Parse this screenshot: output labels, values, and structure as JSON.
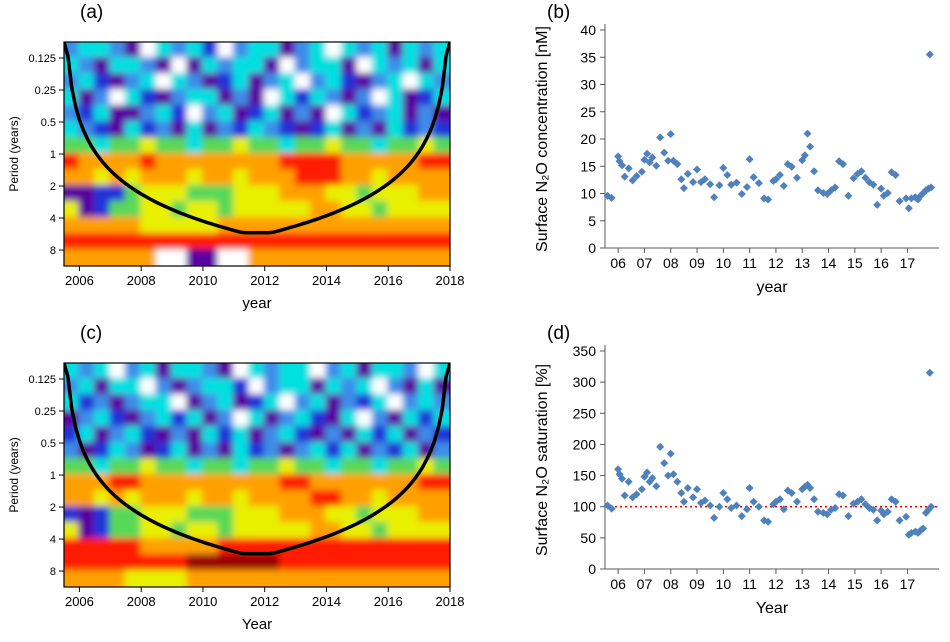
{
  "panels": [
    {
      "id": "a",
      "label": "(a)"
    },
    {
      "id": "b",
      "label": "(b)"
    },
    {
      "id": "c",
      "label": "(c)"
    },
    {
      "id": "d",
      "label": "(d)"
    }
  ],
  "chart_data": [
    {
      "id": "a",
      "type": "heatmap",
      "subtype": "wavelet-power-spectrum-contour",
      "xlabel": "year",
      "ylabel": "Period (years)",
      "x_domain": [
        2005.5,
        2018
      ],
      "x_ticks": [
        2006,
        2008,
        2010,
        2012,
        2014,
        2016,
        2018
      ],
      "x_tick_labels": [
        "2006",
        "2008",
        "2010",
        "2012",
        "2014",
        "2016",
        "2018"
      ],
      "y_scale": "log2",
      "y_domain": [
        0.0884,
        11.3
      ],
      "y_ticks": [
        0.125,
        0.25,
        0.5,
        1,
        2,
        4,
        8
      ],
      "y_tick_labels": [
        "0.125",
        "0.25",
        "0.5",
        "1",
        "2",
        "4",
        "8"
      ],
      "palette": [
        "#5A00A0",
        "#2230D8",
        "#3D8DE8",
        "#00E0E0",
        "#58D858",
        "#E8F000",
        "#FFA000",
        "#FF1E00",
        "#990000",
        "#FFFFFF"
      ],
      "palette_note": "digits in grid_rows index this jet-style palette; 9 = white low-power holes",
      "grid_rows": [
        "2332093231923302393230323",
        "3203320903233092330932303",
        "2310239320130239231023932",
        "3029310233020931320293013",
        "2130023192301302093123020",
        "3210312030213210130203121",
        "4434454434454434454434454",
        "7666676666666677776666677",
        "6656566656656667776656666",
        "0011455544455566655455566",
        "5014455455455555665545555",
        "6666655555666666666666666",
        "7777777777777777777777777",
        "6666669900996666666666666"
      ],
      "cone_of_influence": {
        "present": true,
        "color": "#000000",
        "max_period": 5.5,
        "slope_years_per_period": 0.95
      }
    },
    {
      "id": "b",
      "type": "scatter",
      "xlabel": "year",
      "ylabel": "Surface N₂O concentration [nM]",
      "x_domain": [
        2005.5,
        2018.2
      ],
      "x_tick_years": [
        2006,
        2007,
        2008,
        2009,
        2010,
        2011,
        2012,
        2013,
        2014,
        2015,
        2016,
        2017
      ],
      "x_tick_labels": [
        "06",
        "07",
        "08",
        "09",
        "10",
        "11",
        "12",
        "13",
        "14",
        "15",
        "16",
        "17"
      ],
      "ylim": [
        0,
        40
      ],
      "y_ticks": [
        0,
        5,
        10,
        15,
        20,
        25,
        30,
        35,
        40
      ],
      "y_tick_labels": [
        "0",
        "5",
        "10",
        "15",
        "20",
        "25",
        "30",
        "35",
        "40"
      ],
      "marker": {
        "shape": "diamond",
        "color": "#4F81BD"
      },
      "points": [
        [
          2005.6,
          9.6
        ],
        [
          2005.75,
          9.2
        ],
        [
          2006.0,
          16.8
        ],
        [
          2006.05,
          15.9
        ],
        [
          2006.15,
          15.2
        ],
        [
          2006.25,
          13.1
        ],
        [
          2006.4,
          14.6
        ],
        [
          2006.55,
          12.4
        ],
        [
          2006.7,
          13.2
        ],
        [
          2006.9,
          14.0
        ],
        [
          2007.0,
          16.2
        ],
        [
          2007.1,
          17.3
        ],
        [
          2007.2,
          15.7
        ],
        [
          2007.3,
          16.6
        ],
        [
          2007.45,
          15.1
        ],
        [
          2007.6,
          20.3
        ],
        [
          2007.75,
          17.5
        ],
        [
          2007.9,
          16.0
        ],
        [
          2008.0,
          20.9
        ],
        [
          2008.1,
          16.0
        ],
        [
          2008.25,
          15.4
        ],
        [
          2008.4,
          12.6
        ],
        [
          2008.5,
          11.0
        ],
        [
          2008.65,
          13.6
        ],
        [
          2008.85,
          12.1
        ],
        [
          2009.0,
          14.4
        ],
        [
          2009.15,
          12.1
        ],
        [
          2009.3,
          12.6
        ],
        [
          2009.5,
          11.7
        ],
        [
          2009.65,
          9.3
        ],
        [
          2009.85,
          11.5
        ],
        [
          2010.0,
          14.7
        ],
        [
          2010.15,
          13.4
        ],
        [
          2010.3,
          11.6
        ],
        [
          2010.5,
          12.0
        ],
        [
          2010.7,
          9.9
        ],
        [
          2010.9,
          11.2
        ],
        [
          2011.0,
          16.3
        ],
        [
          2011.15,
          13.0
        ],
        [
          2011.35,
          11.9
        ],
        [
          2011.55,
          9.1
        ],
        [
          2011.7,
          8.9
        ],
        [
          2011.9,
          12.3
        ],
        [
          2012.0,
          12.6
        ],
        [
          2012.15,
          13.4
        ],
        [
          2012.3,
          11.4
        ],
        [
          2012.45,
          15.4
        ],
        [
          2012.6,
          14.9
        ],
        [
          2012.8,
          12.9
        ],
        [
          2013.0,
          16.1
        ],
        [
          2013.1,
          17.0
        ],
        [
          2013.2,
          21.0
        ],
        [
          2013.3,
          18.6
        ],
        [
          2013.45,
          14.1
        ],
        [
          2013.6,
          10.6
        ],
        [
          2013.8,
          10.1
        ],
        [
          2013.95,
          9.9
        ],
        [
          2014.1,
          10.6
        ],
        [
          2014.25,
          11.1
        ],
        [
          2014.4,
          15.9
        ],
        [
          2014.55,
          15.4
        ],
        [
          2014.75,
          9.6
        ],
        [
          2014.95,
          12.8
        ],
        [
          2015.1,
          13.6
        ],
        [
          2015.25,
          14.1
        ],
        [
          2015.4,
          12.9
        ],
        [
          2015.55,
          12.1
        ],
        [
          2015.7,
          11.6
        ],
        [
          2015.85,
          7.9
        ],
        [
          2016.0,
          10.9
        ],
        [
          2016.1,
          9.6
        ],
        [
          2016.25,
          10.1
        ],
        [
          2016.4,
          13.9
        ],
        [
          2016.55,
          13.4
        ],
        [
          2016.7,
          8.6
        ],
        [
          2016.95,
          9.1
        ],
        [
          2017.05,
          7.3
        ],
        [
          2017.15,
          9.1
        ],
        [
          2017.3,
          9.3
        ],
        [
          2017.4,
          8.9
        ],
        [
          2017.5,
          9.6
        ],
        [
          2017.6,
          10.1
        ],
        [
          2017.7,
          10.6
        ],
        [
          2017.8,
          10.9
        ],
        [
          2017.9,
          11.1
        ],
        [
          2017.85,
          35.5
        ]
      ]
    },
    {
      "id": "c",
      "type": "heatmap",
      "subtype": "wavelet-power-spectrum-contour",
      "xlabel": "Year",
      "ylabel": "Period (years)",
      "x_domain": [
        2005.5,
        2018
      ],
      "x_ticks": [
        2006,
        2008,
        2010,
        2012,
        2014,
        2016,
        2018
      ],
      "x_tick_labels": [
        "2006",
        "2008",
        "2010",
        "2012",
        "2014",
        "2016",
        "2018"
      ],
      "y_scale": "log2",
      "y_domain": [
        0.0884,
        11.3
      ],
      "y_ticks": [
        0.125,
        0.25,
        0.5,
        1,
        2,
        4,
        8
      ],
      "y_tick_labels": [
        "0.125",
        "0.25",
        "0.5",
        "1",
        "2",
        "4",
        "8"
      ],
      "palette": [
        "#5A00A0",
        "#2230D8",
        "#3D8DE8",
        "#00E0E0",
        "#58D858",
        "#E8F000",
        "#FFA000",
        "#FF1E00",
        "#990000",
        "#FFFFFF"
      ],
      "palette_note": "digits in grid_rows index this jet-style palette; 9 = white low-power holes",
      "grid_rows": [
        "3239230332093233923033293",
        "2303392023319233032392030",
        "3120233902301392302139232",
        "0231023130293023103920313",
        "1302310203130231020313021",
        "2013201302031202313021302",
        "4434454434434454434434454",
        "6667766666666677666666677",
        "6656566656656666776656666",
        "1014455544455566655455566",
        "5014455455455555665545555",
        "7777766666777777777777777",
        "7777777788888877777777777",
        "6666555566666666666666666"
      ],
      "cone_of_influence": {
        "present": true,
        "color": "#000000",
        "max_period": 5.5,
        "slope_years_per_period": 0.95
      }
    },
    {
      "id": "d",
      "type": "scatter",
      "xlabel": "Year",
      "ylabel": "Surface N₂O saturation [%]",
      "x_domain": [
        2005.5,
        2018.2
      ],
      "x_tick_years": [
        2006,
        2007,
        2008,
        2009,
        2010,
        2011,
        2012,
        2013,
        2014,
        2015,
        2016,
        2017
      ],
      "x_tick_labels": [
        "06",
        "07",
        "08",
        "09",
        "10",
        "11",
        "12",
        "13",
        "14",
        "15",
        "16",
        "17"
      ],
      "ylim": [
        0,
        350
      ],
      "y_ticks": [
        0,
        50,
        100,
        150,
        200,
        250,
        300,
        350
      ],
      "y_tick_labels": [
        "0",
        "50",
        "100",
        "150",
        "200",
        "250",
        "300",
        "350"
      ],
      "marker": {
        "shape": "diamond",
        "color": "#4F81BD"
      },
      "refline": {
        "y": 100,
        "color": "#FF0000",
        "style": "dotted"
      },
      "points": [
        [
          2005.6,
          102
        ],
        [
          2005.75,
          97
        ],
        [
          2006.0,
          160
        ],
        [
          2006.05,
          152
        ],
        [
          2006.15,
          145
        ],
        [
          2006.25,
          118
        ],
        [
          2006.4,
          140
        ],
        [
          2006.55,
          115
        ],
        [
          2006.7,
          120
        ],
        [
          2006.9,
          128
        ],
        [
          2007.0,
          148
        ],
        [
          2007.1,
          155
        ],
        [
          2007.2,
          140
        ],
        [
          2007.3,
          146
        ],
        [
          2007.45,
          133
        ],
        [
          2007.6,
          196
        ],
        [
          2007.75,
          170
        ],
        [
          2007.9,
          150
        ],
        [
          2008.0,
          185
        ],
        [
          2008.1,
          152
        ],
        [
          2008.25,
          140
        ],
        [
          2008.4,
          122
        ],
        [
          2008.5,
          108
        ],
        [
          2008.65,
          130
        ],
        [
          2008.85,
          115
        ],
        [
          2009.0,
          128
        ],
        [
          2009.15,
          106
        ],
        [
          2009.3,
          110
        ],
        [
          2009.5,
          102
        ],
        [
          2009.65,
          82
        ],
        [
          2009.85,
          100
        ],
        [
          2010.0,
          122
        ],
        [
          2010.15,
          112
        ],
        [
          2010.3,
          98
        ],
        [
          2010.5,
          102
        ],
        [
          2010.7,
          85
        ],
        [
          2010.9,
          96
        ],
        [
          2011.0,
          130
        ],
        [
          2011.15,
          108
        ],
        [
          2011.35,
          100
        ],
        [
          2011.55,
          78
        ],
        [
          2011.7,
          76
        ],
        [
          2011.9,
          104
        ],
        [
          2012.0,
          108
        ],
        [
          2012.15,
          112
        ],
        [
          2012.3,
          96
        ],
        [
          2012.45,
          126
        ],
        [
          2012.6,
          122
        ],
        [
          2012.8,
          108
        ],
        [
          2013.0,
          128
        ],
        [
          2013.1,
          132
        ],
        [
          2013.2,
          135
        ],
        [
          2013.3,
          130
        ],
        [
          2013.45,
          112
        ],
        [
          2013.6,
          92
        ],
        [
          2013.8,
          90
        ],
        [
          2013.95,
          88
        ],
        [
          2014.1,
          95
        ],
        [
          2014.25,
          98
        ],
        [
          2014.4,
          120
        ],
        [
          2014.55,
          118
        ],
        [
          2014.75,
          85
        ],
        [
          2014.95,
          105
        ],
        [
          2015.1,
          108
        ],
        [
          2015.25,
          112
        ],
        [
          2015.4,
          104
        ],
        [
          2015.55,
          98
        ],
        [
          2015.7,
          95
        ],
        [
          2015.85,
          78
        ],
        [
          2016.0,
          94
        ],
        [
          2016.1,
          88
        ],
        [
          2016.25,
          92
        ],
        [
          2016.4,
          112
        ],
        [
          2016.55,
          108
        ],
        [
          2016.7,
          78
        ],
        [
          2016.95,
          84
        ],
        [
          2017.05,
          55
        ],
        [
          2017.15,
          58
        ],
        [
          2017.3,
          60
        ],
        [
          2017.4,
          58
        ],
        [
          2017.5,
          62
        ],
        [
          2017.6,
          65
        ],
        [
          2017.7,
          90
        ],
        [
          2017.8,
          95
        ],
        [
          2017.9,
          100
        ],
        [
          2017.85,
          315
        ]
      ]
    }
  ]
}
